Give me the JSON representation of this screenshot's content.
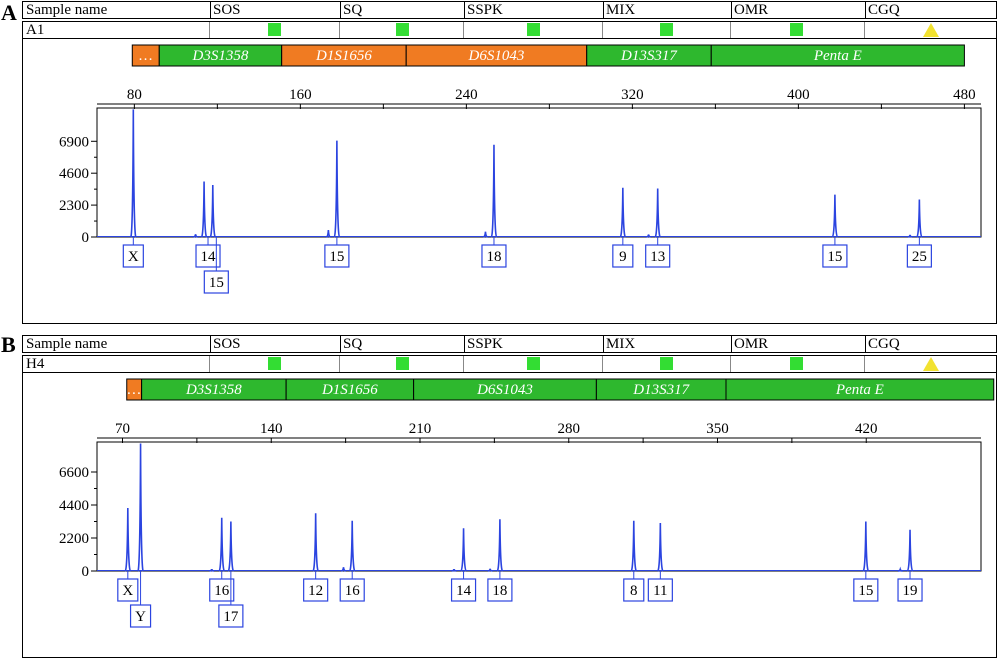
{
  "colors": {
    "trace": "#2b44e0",
    "locus_pass": "#2eb82e",
    "locus_flag": "#f07b22",
    "qc_pass": "#33dd33",
    "qc_warn": "#f2e230"
  },
  "qc_columns": [
    "Sample name",
    "SOS",
    "SQ",
    "SSPK",
    "MIX",
    "OMR",
    "CGQ"
  ],
  "qc_icons": [
    "green-square",
    "green-square",
    "green-square",
    "green-square",
    "green-square",
    "yellow-triangle"
  ],
  "panels": [
    {
      "letter": "A",
      "sample": "A1",
      "loci": [
        {
          "name": "…",
          "status": "flag",
          "start": 79,
          "end": 92
        },
        {
          "name": "D3S1358",
          "status": "pass",
          "start": 92,
          "end": 151
        },
        {
          "name": "D1S1656",
          "status": "flag",
          "start": 151,
          "end": 211
        },
        {
          "name": "D6S1043",
          "status": "flag",
          "start": 211,
          "end": 298
        },
        {
          "name": "D13S317",
          "status": "pass",
          "start": 298,
          "end": 358
        },
        {
          "name": "Penta E",
          "status": "pass",
          "start": 358,
          "end": 480
        }
      ],
      "chart_data": {
        "type": "line",
        "xticks": [
          80,
          160,
          240,
          320,
          400,
          480
        ],
        "xlim": [
          62,
          488
        ],
        "yticks": [
          0,
          2300,
          4600,
          6900
        ],
        "ylim": [
          0,
          9300
        ],
        "peaks": [
          {
            "x": 79.5,
            "height": 9200
          },
          {
            "x": 113.6,
            "height": 4000
          },
          {
            "x": 117.8,
            "height": 3750
          },
          {
            "x": 177.6,
            "height": 6950
          },
          {
            "x": 253.3,
            "height": 6650
          },
          {
            "x": 315.4,
            "height": 3550
          },
          {
            "x": 332.2,
            "height": 3500
          },
          {
            "x": 417.6,
            "height": 3050
          },
          {
            "x": 458.3,
            "height": 2700
          }
        ],
        "stutters": [
          {
            "x": 109.5,
            "height": 200
          },
          {
            "x": 173.5,
            "height": 500
          },
          {
            "x": 249.2,
            "height": 380
          },
          {
            "x": 327.8,
            "height": 180
          },
          {
            "x": 453.8,
            "height": 150
          }
        ],
        "alleles": [
          {
            "x": 79.5,
            "label": "X",
            "row": 0
          },
          {
            "x": 115.5,
            "label": "14",
            "row": 0
          },
          {
            "x": 119.5,
            "label": "15",
            "row": 1
          },
          {
            "x": 177.6,
            "label": "15",
            "row": 0
          },
          {
            "x": 253.3,
            "label": "18",
            "row": 0
          },
          {
            "x": 315.4,
            "label": "9",
            "row": 0
          },
          {
            "x": 332.2,
            "label": "13",
            "row": 0
          },
          {
            "x": 417.6,
            "label": "15",
            "row": 0
          },
          {
            "x": 458.3,
            "label": "25",
            "row": 0
          }
        ]
      }
    },
    {
      "letter": "B",
      "sample": "H4",
      "loci": [
        {
          "name": "…",
          "status": "flag",
          "start": 72,
          "end": 79
        },
        {
          "name": "D3S1358",
          "status": "pass",
          "start": 79,
          "end": 147
        },
        {
          "name": "D1S1656",
          "status": "pass",
          "start": 147,
          "end": 207
        },
        {
          "name": "D6S1043",
          "status": "pass",
          "start": 207,
          "end": 293
        },
        {
          "name": "D13S317",
          "status": "pass",
          "start": 293,
          "end": 354
        },
        {
          "name": "Penta E",
          "status": "pass",
          "start": 354,
          "end": 480
        }
      ],
      "chart_data": {
        "type": "line",
        "xticks": [
          70,
          140,
          210,
          280,
          350,
          420
        ],
        "xlim": [
          58,
          474
        ],
        "yticks": [
          0,
          2200,
          4400,
          6600
        ],
        "ylim": [
          0,
          8600
        ],
        "peaks": [
          {
            "x": 72.5,
            "height": 4200
          },
          {
            "x": 78.5,
            "height": 8500
          },
          {
            "x": 116.7,
            "height": 3550
          },
          {
            "x": 121.0,
            "height": 3300
          },
          {
            "x": 160.9,
            "height": 3850
          },
          {
            "x": 178.1,
            "height": 3350
          },
          {
            "x": 230.5,
            "height": 2850
          },
          {
            "x": 247.6,
            "height": 3450
          },
          {
            "x": 310.6,
            "height": 3350
          },
          {
            "x": 323.1,
            "height": 3200
          },
          {
            "x": 419.8,
            "height": 3300
          },
          {
            "x": 440.6,
            "height": 2750
          }
        ],
        "stutters": [
          {
            "x": 112.0,
            "height": 120
          },
          {
            "x": 174.0,
            "height": 250
          },
          {
            "x": 226.0,
            "height": 120
          },
          {
            "x": 243.0,
            "height": 150
          },
          {
            "x": 436.0,
            "height": 100
          }
        ],
        "alleles": [
          {
            "x": 72.5,
            "label": "X",
            "row": 0
          },
          {
            "x": 78.5,
            "label": "Y",
            "row": 1
          },
          {
            "x": 116.7,
            "label": "16",
            "row": 0
          },
          {
            "x": 121.0,
            "label": "17",
            "row": 1
          },
          {
            "x": 160.9,
            "label": "12",
            "row": 0
          },
          {
            "x": 178.1,
            "label": "16",
            "row": 0
          },
          {
            "x": 230.5,
            "label": "14",
            "row": 0
          },
          {
            "x": 247.6,
            "label": "18",
            "row": 0
          },
          {
            "x": 310.6,
            "label": "8",
            "row": 0
          },
          {
            "x": 323.1,
            "label": "11",
            "row": 0
          },
          {
            "x": 419.8,
            "label": "15",
            "row": 0
          },
          {
            "x": 440.6,
            "label": "19",
            "row": 0
          }
        ]
      }
    }
  ]
}
